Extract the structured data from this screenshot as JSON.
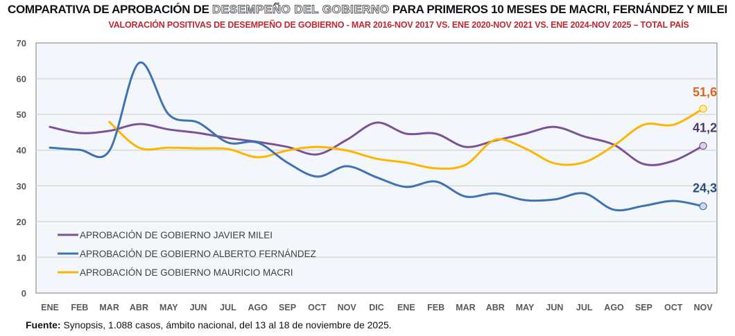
{
  "title": {
    "prefix": "COMPARATIVA DE APROBACIÓN DE ",
    "highlight": "DESEMPEÑO DEL GOBIERNO",
    "suffix": " PARA PRIMEROS 10 MESES DE MACRI, FERNÁNDEZ Y MILEI"
  },
  "subtitle": "VALORACIÓN POSITIVAS DE DESEMPEÑO DE GOBIERNO - MAR 2016-NOV 2017 VS. ENE 2020-NOV 2021 VS. ENE 2024-NOV 2025 – TOTAL PAÍS",
  "footer": {
    "label": "Fuente:",
    "text": " Synopsis, 1.088 casos, ámbito nacional, del 13 al 18 de noviembre de 2025."
  },
  "chart_data": {
    "type": "line",
    "title": "COMPARATIVA DE APROBACIÓN DE DESEMPEÑO DEL GOBIERNO PARA PRIMEROS 10 MESES DE MACRI, FERNÁNDEZ Y MILEI",
    "subtitle": "VALORACIÓN POSITIVAS DE DESEMPEÑO DE GOBIERNO - MAR 2016-NOV 2017 VS. ENE 2020-NOV 2021 VS. ENE 2024-NOV 2025 – TOTAL PAÍS",
    "xlabel": "",
    "ylabel": "",
    "ylim": [
      0,
      70
    ],
    "yticks": [
      0,
      10,
      20,
      30,
      40,
      50,
      60,
      70
    ],
    "grid": true,
    "legend": "bottom-left",
    "categories": [
      "ENE",
      "FEB",
      "MAR",
      "ABR",
      "MAY",
      "JUN",
      "JUL",
      "AGO",
      "SEP",
      "OCT",
      "NOV",
      "DIC",
      "ENE",
      "FEB",
      "MAR",
      "ABR",
      "MAY",
      "JUN",
      "JUL",
      "AGO",
      "SEP",
      "OCT",
      "NOV"
    ],
    "series": [
      {
        "name": "APROBACIÓN DE GOBIERNO JAVIER MILEI",
        "color": "#7a5296",
        "end_label": "41,2",
        "end_label_color": "#4e3a6b",
        "values": [
          46.5,
          44.8,
          45.4,
          47.3,
          45.8,
          44.8,
          43.4,
          42.3,
          40.9,
          38.8,
          42.9,
          47.7,
          44.6,
          44.6,
          40.9,
          42.7,
          44.6,
          46.5,
          43.8,
          41.5,
          36.1,
          37.0,
          41.2
        ]
      },
      {
        "name": "APROBACIÓN DE GOBIERNO ALBERTO FERNÁNDEZ",
        "color": "#3d72b4",
        "end_label": "24,3",
        "end_label_color": "#2a4f7e",
        "values": [
          40.7,
          40.1,
          39.8,
          64.4,
          50.0,
          47.7,
          42.1,
          42.1,
          36.5,
          32.6,
          35.5,
          32.4,
          29.7,
          31.2,
          27.0,
          27.9,
          26.0,
          26.2,
          27.9,
          23.3,
          24.4,
          25.8,
          24.3
        ]
      },
      {
        "name": "APROBACIÓN DE GOBIERNO MAURICIO MACRI",
        "color": "#ffb400",
        "end_label": "51,6",
        "end_label_color": "#e3641c",
        "values": [
          null,
          null,
          47.9,
          40.7,
          40.7,
          40.5,
          40.3,
          38.0,
          39.9,
          40.9,
          39.9,
          37.6,
          36.5,
          34.9,
          35.9,
          42.9,
          40.5,
          36.3,
          36.6,
          41.3,
          47.1,
          47.1,
          51.6
        ]
      }
    ]
  },
  "colors": {
    "plot_background": "#f3f6fa",
    "gridline": "#d9d9d9",
    "axis": "#a6a6a6",
    "tick_text": "#595959",
    "marker_fill": "#d9d4e8"
  }
}
